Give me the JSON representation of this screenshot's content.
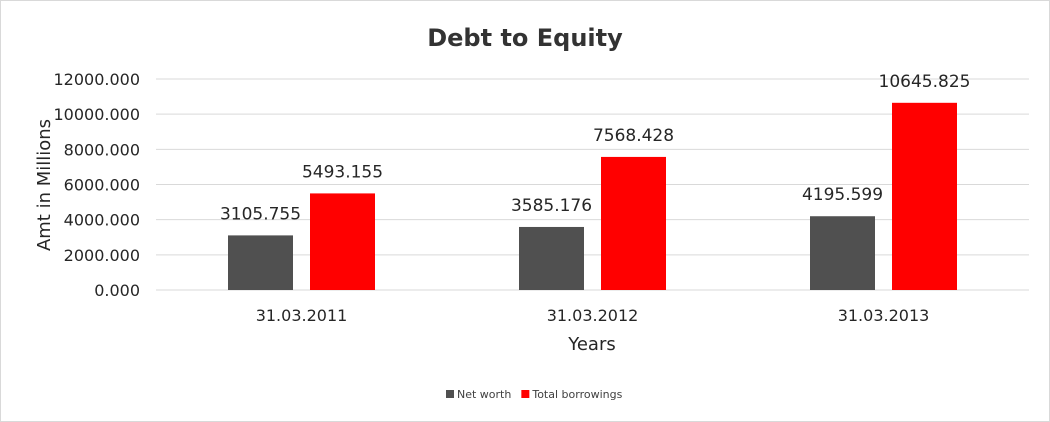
{
  "chart_data": {
    "type": "bar",
    "title": "Debt to Equity",
    "xlabel": "Years",
    "ylabel": "Amt in Millions",
    "categories": [
      "31.03.2011",
      "31.03.2012",
      "31.03.2013"
    ],
    "series": [
      {
        "name": "Net worth",
        "color": "#505050",
        "values": [
          3105.755,
          3585.176,
          4195.599
        ],
        "labels": [
          "3105.755",
          "3585.176",
          "4195.599"
        ]
      },
      {
        "name": "Total borrowings",
        "color": "#ff0000",
        "values": [
          5493.155,
          7568.428,
          10645.825
        ],
        "labels": [
          "5493.155",
          "7568.428",
          "10645.825"
        ]
      }
    ],
    "ylim": [
      0,
      12000
    ],
    "yticks": [
      "0.000",
      "2000.000",
      "4000.000",
      "6000.000",
      "8000.000",
      "10000.000",
      "12000.000"
    ],
    "grid": true,
    "legend_position": "bottom"
  }
}
